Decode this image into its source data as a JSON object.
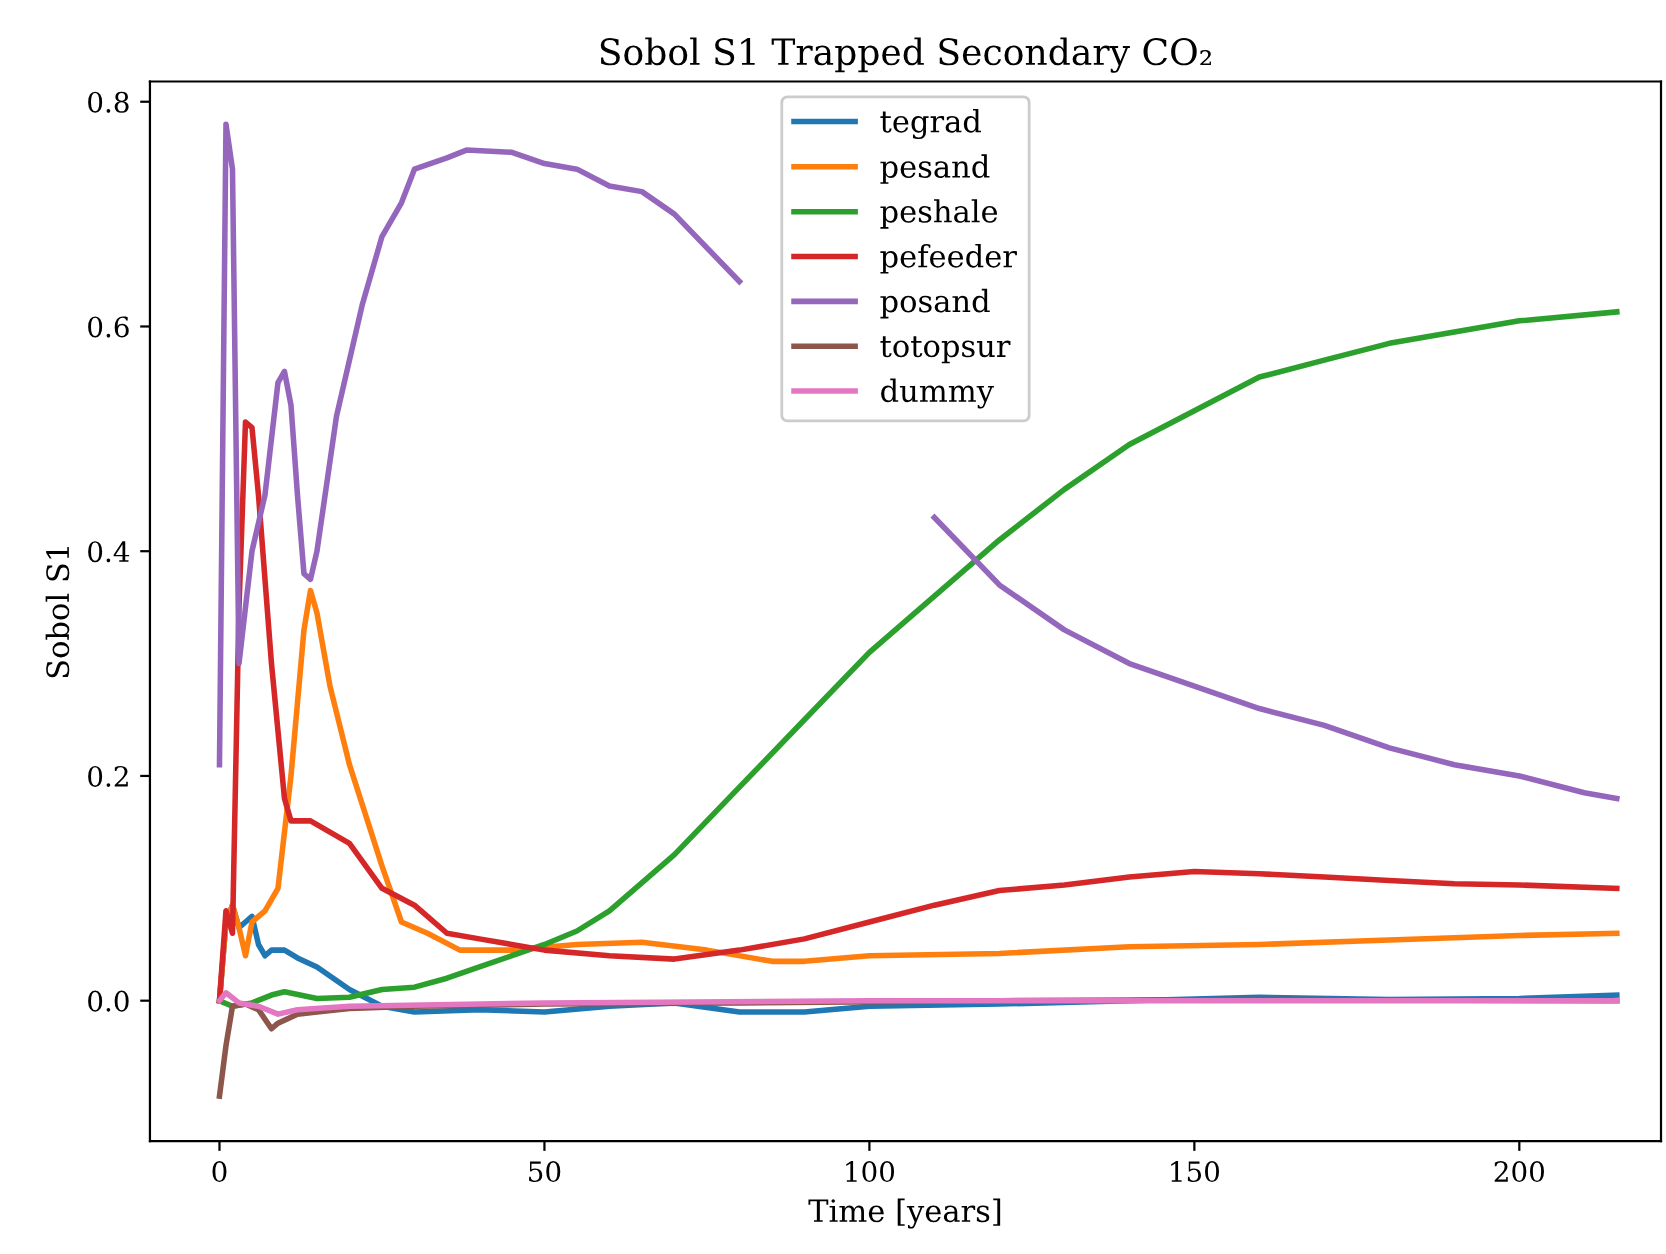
{
  "chart_data": {
    "type": "line",
    "title": "Sobol S1 Trapped Secondary CO₂",
    "xlabel": "Time [years]",
    "ylabel": "Sobol S1",
    "xlim": [
      -10.7,
      221.8
    ],
    "ylim": [
      -0.125,
      0.818
    ],
    "xticks": [
      0,
      50,
      100,
      150,
      200
    ],
    "yticks": [
      {
        "value": 0,
        "label": "0.0"
      },
      0.2,
      0.4,
      0.6,
      0.8
    ],
    "legend": "top",
    "grid": false,
    "series": [
      {
        "name": "tegrad",
        "color": "#1f77b4",
        "x": [
          0,
          1,
          2,
          3,
          4,
          5,
          6,
          7,
          8,
          10,
          12,
          15,
          20,
          25,
          30,
          40,
          50,
          60,
          70,
          80,
          90,
          100,
          120,
          140,
          160,
          180,
          200,
          215
        ],
        "values": [
          0.0,
          0.07,
          0.085,
          0.065,
          0.07,
          0.075,
          0.05,
          0.04,
          0.045,
          0.045,
          0.038,
          0.03,
          0.01,
          -0.005,
          -0.01,
          -0.008,
          -0.01,
          -0.005,
          -0.002,
          -0.01,
          -0.01,
          -0.005,
          -0.003,
          0.0,
          0.003,
          0.001,
          0.002,
          0.005
        ]
      },
      {
        "name": "pesand",
        "color": "#ff7f0e",
        "x": [
          0,
          1,
          2,
          3,
          4,
          5,
          7,
          9,
          11,
          13,
          14,
          15,
          17,
          20,
          25,
          28,
          32,
          37,
          45,
          55,
          65,
          75,
          85,
          90,
          100,
          120,
          140,
          160,
          180,
          200,
          215
        ],
        "values": [
          0.0,
          0.07,
          0.085,
          0.065,
          0.04,
          0.07,
          0.08,
          0.1,
          0.2,
          0.33,
          0.365,
          0.345,
          0.28,
          0.21,
          0.12,
          0.07,
          0.06,
          0.045,
          0.045,
          0.05,
          0.052,
          0.045,
          0.035,
          0.035,
          0.04,
          0.042,
          0.048,
          0.05,
          0.054,
          0.058,
          0.06
        ]
      },
      {
        "name": "peshale",
        "color": "#2ca02c",
        "x": [
          0,
          2,
          5,
          8,
          10,
          15,
          20,
          25,
          30,
          35,
          40,
          45,
          50,
          55,
          60,
          70,
          80,
          90,
          100,
          110,
          120,
          130,
          140,
          150,
          160,
          170,
          180,
          190,
          200,
          215
        ],
        "values": [
          0.0,
          -0.005,
          -0.002,
          0.005,
          0.008,
          0.002,
          0.003,
          0.01,
          0.012,
          0.02,
          0.03,
          0.04,
          0.05,
          0.062,
          0.08,
          0.13,
          0.19,
          0.25,
          0.31,
          0.36,
          0.41,
          0.455,
          0.495,
          0.525,
          0.555,
          0.57,
          0.585,
          0.595,
          0.605,
          0.613
        ]
      },
      {
        "name": "pefeeder",
        "color": "#d62728",
        "x": [
          0,
          1,
          2,
          3,
          4,
          5,
          6,
          8,
          10,
          11,
          14,
          17,
          20,
          25,
          30,
          35,
          40,
          50,
          60,
          70,
          80,
          90,
          100,
          110,
          120,
          130,
          140,
          150,
          160,
          170,
          180,
          190,
          200,
          215
        ],
        "values": [
          0.0,
          0.08,
          0.06,
          0.35,
          0.515,
          0.51,
          0.45,
          0.3,
          0.18,
          0.16,
          0.16,
          0.15,
          0.14,
          0.1,
          0.085,
          0.06,
          0.055,
          0.045,
          0.04,
          0.037,
          0.045,
          0.055,
          0.07,
          0.085,
          0.098,
          0.103,
          0.11,
          0.115,
          0.113,
          0.11,
          0.107,
          0.104,
          0.103,
          0.1
        ]
      },
      {
        "name": "posand",
        "color": "#9467bd",
        "x": [
          0,
          1,
          2,
          3,
          5,
          7,
          9,
          10,
          11,
          12,
          13,
          14,
          15,
          18,
          22,
          25,
          28,
          30,
          35,
          38,
          45,
          50,
          55,
          60,
          65,
          70,
          80,
          90,
          100,
          110,
          120,
          130,
          140,
          150,
          160,
          170,
          180,
          190,
          200,
          210,
          215
        ],
        "values": [
          0.21,
          0.78,
          0.74,
          0.3,
          0.4,
          0.45,
          0.55,
          0.56,
          0.53,
          0.45,
          0.38,
          0.375,
          0.4,
          0.52,
          0.62,
          0.68,
          0.71,
          0.74,
          0.75,
          0.757,
          0.755,
          0.745,
          0.74,
          0.725,
          0.72,
          0.7,
          0.64,
          null,
          null,
          0.43,
          0.37,
          0.33,
          0.3,
          0.28,
          0.26,
          0.245,
          0.225,
          0.21,
          0.2,
          0.185,
          0.18
        ]
      },
      {
        "name": "totopsur",
        "color": "#8c564b",
        "x": [
          0,
          1,
          2,
          4,
          6,
          8,
          9,
          12,
          15,
          20,
          30,
          50,
          80,
          120,
          160,
          215
        ],
        "values": [
          -0.085,
          -0.04,
          -0.005,
          -0.003,
          -0.008,
          -0.025,
          -0.02,
          -0.012,
          -0.01,
          -0.007,
          -0.005,
          -0.003,
          -0.002,
          0.0,
          0.001,
          0.0
        ]
      },
      {
        "name": "dummy",
        "color": "#e377c2",
        "x": [
          0,
          1,
          3,
          6,
          9,
          12,
          20,
          50,
          100,
          150,
          215
        ],
        "values": [
          0.0,
          0.007,
          -0.002,
          -0.005,
          -0.012,
          -0.008,
          -0.005,
          -0.002,
          0.0,
          0.0,
          0.0
        ]
      }
    ]
  }
}
